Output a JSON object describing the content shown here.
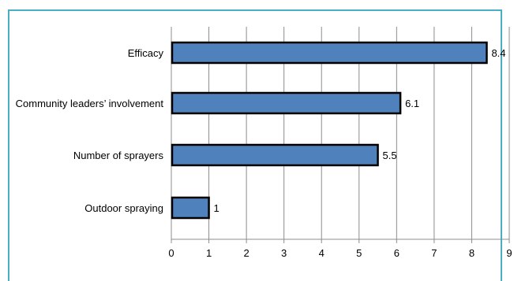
{
  "chart_data": {
    "type": "bar",
    "orientation": "horizontal",
    "categories": [
      "Efficacy",
      "Community leaders’ involvement",
      "Number of sprayers",
      "Outdoor spraying"
    ],
    "values": [
      8.4,
      6.1,
      5.5,
      1
    ],
    "data_labels": [
      "8.4",
      "6.1",
      "5.5",
      "1"
    ],
    "x_ticks": [
      "0",
      "1",
      "2",
      "3",
      "4",
      "5",
      "6",
      "7",
      "8",
      "9"
    ],
    "xlim": [
      0,
      9
    ],
    "title": "",
    "xlabel": "",
    "ylabel": "",
    "grid": true,
    "legend": "none",
    "colors": {
      "bar_fill": "#4f81bd",
      "bar_outline": "#000000",
      "grid": "#8c8c8c",
      "frame": "#4bacc6"
    }
  }
}
